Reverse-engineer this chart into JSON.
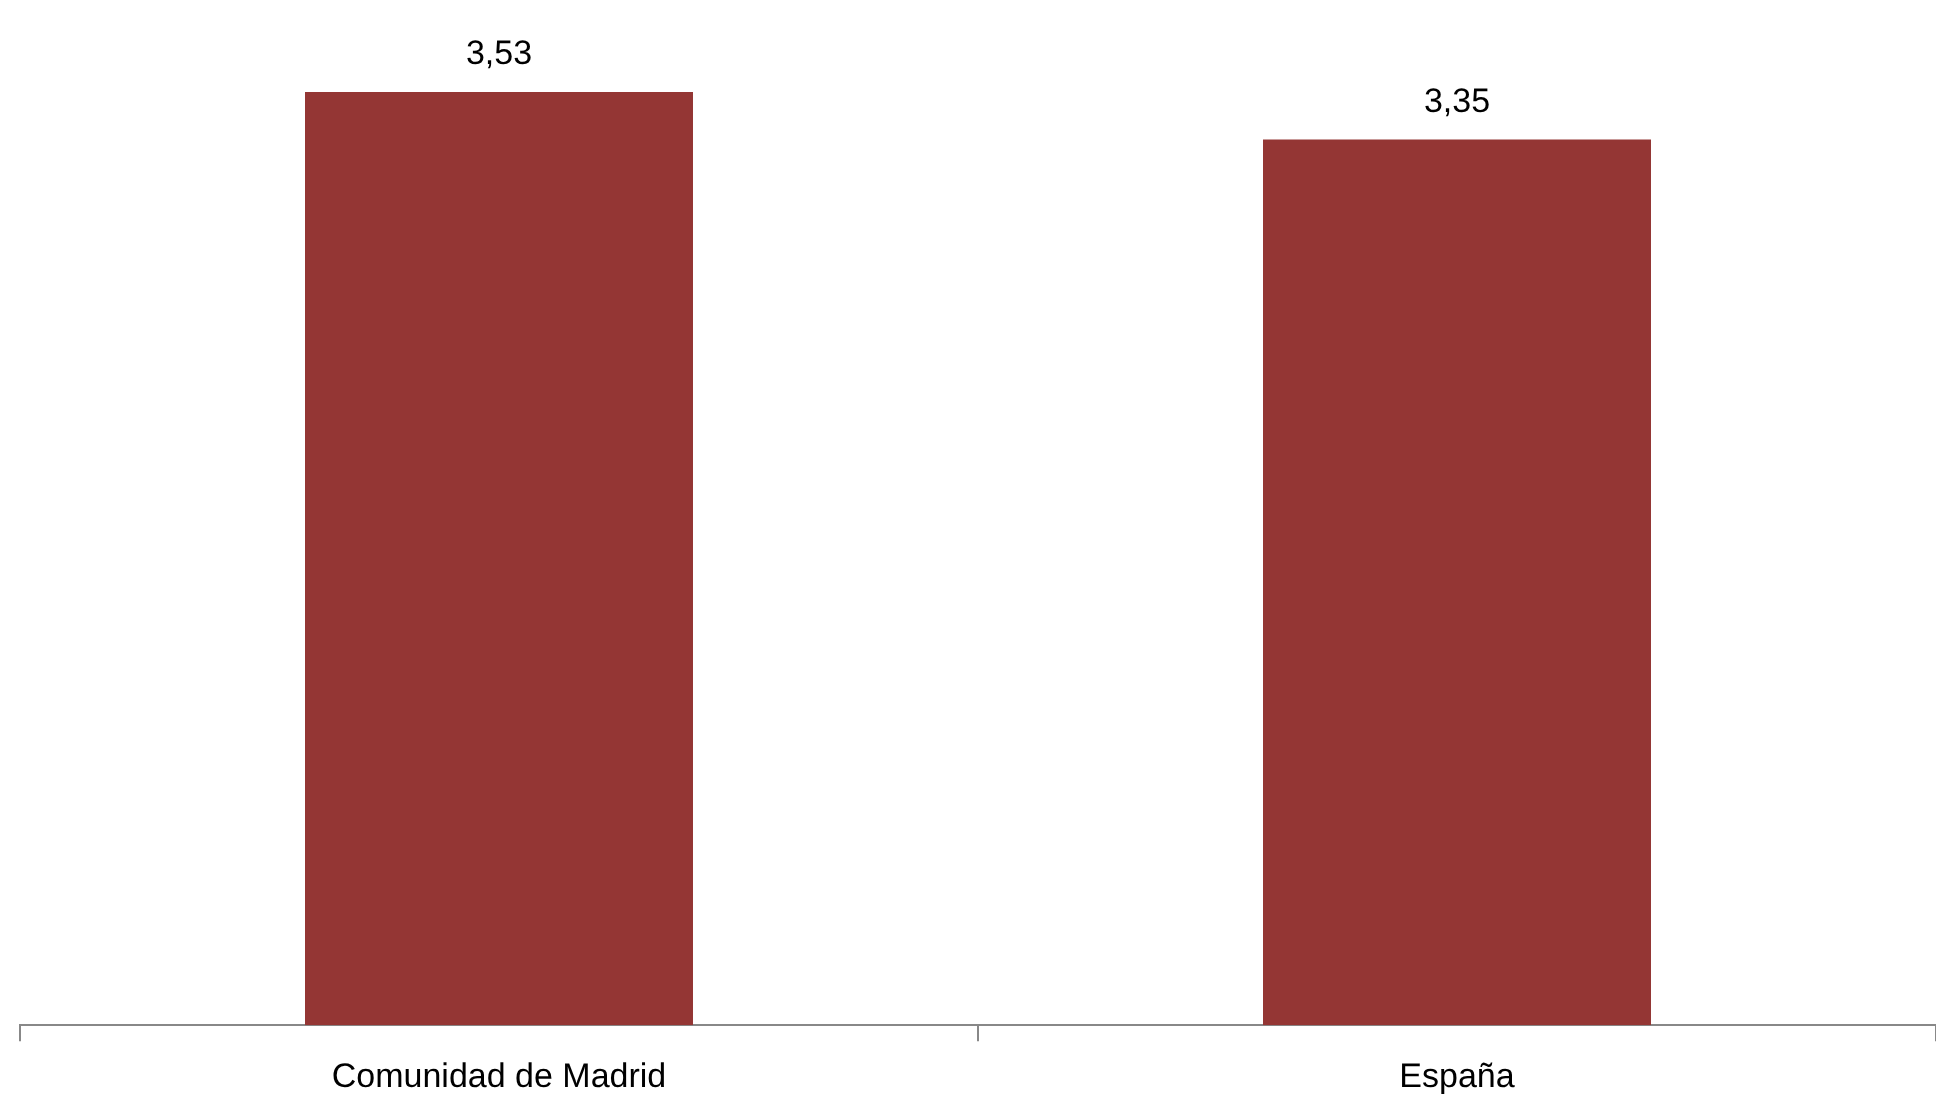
{
  "chart_data": {
    "type": "bar",
    "categories": [
      "Comunidad de Madrid",
      "España"
    ],
    "values": [
      3.53,
      3.35
    ],
    "color": "#943634",
    "value_labels": [
      "3,53",
      "3,35"
    ],
    "tick_labels": "x",
    "grid": false,
    "legend": false
  }
}
